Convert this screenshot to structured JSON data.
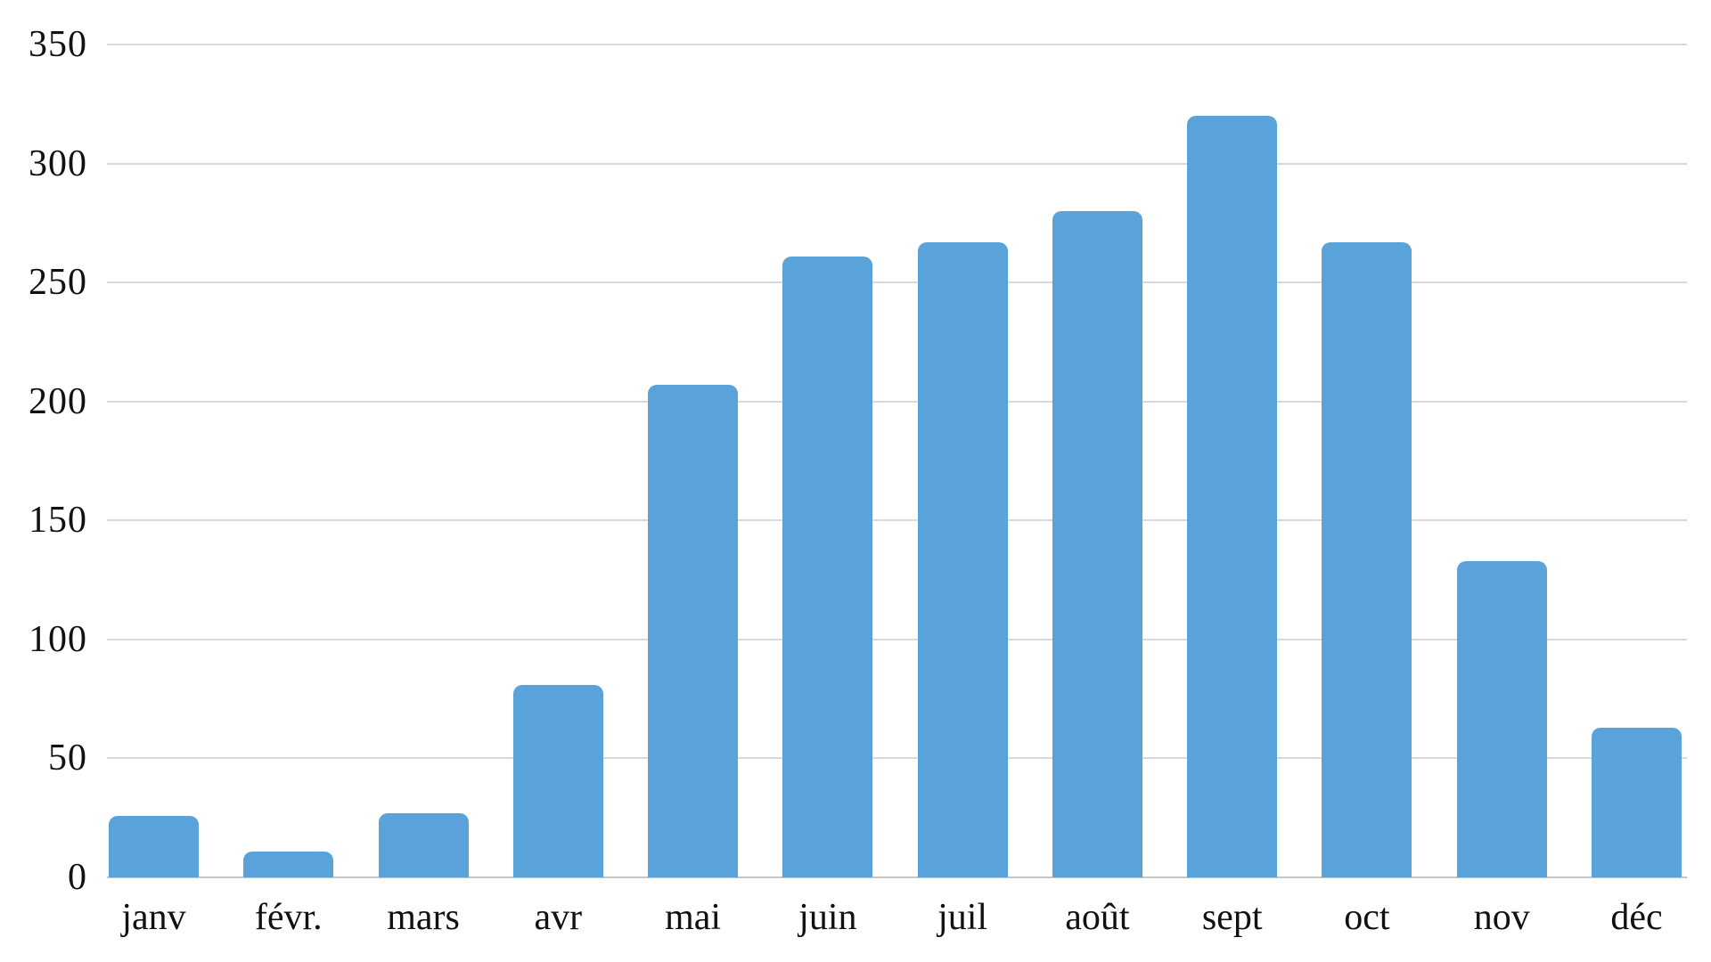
{
  "chart_data": {
    "type": "bar",
    "title": "",
    "xlabel": "",
    "ylabel": "",
    "categories": [
      "janv",
      "févr.",
      "mars",
      "avr",
      "mai",
      "juin",
      "juil",
      "août",
      "sept",
      "oct",
      "nov",
      "déc"
    ],
    "values": [
      26,
      11,
      27,
      81,
      207,
      261,
      267,
      280,
      320,
      267,
      133,
      63
    ],
    "ylim": [
      0,
      350
    ],
    "yticks": [
      0,
      50,
      100,
      150,
      200,
      250,
      300,
      350
    ],
    "grid": true,
    "legend": "none",
    "bar_color": "#5AA3DA",
    "gridline_color": "#D9D9D9",
    "baseline_color": "#C6C6C6",
    "text_color": "#111111",
    "background_color": "#FFFFFF"
  }
}
